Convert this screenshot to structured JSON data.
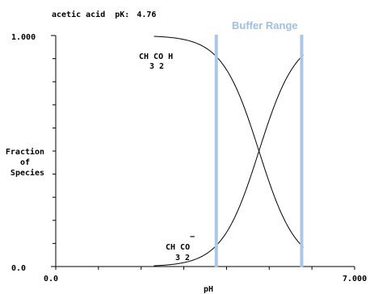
{
  "header": {
    "compound": "acetic acid",
    "pk_label": "pK:",
    "pk_value": "4.76"
  },
  "buffer_label": "Buffer Range",
  "y_axis": {
    "label_lines": [
      "Fraction",
      "of",
      "Species"
    ],
    "top_tick": "1.000",
    "bottom_tick": "0.0"
  },
  "x_axis": {
    "label": "pH",
    "min_tick": "0.0",
    "max_tick": "7.000"
  },
  "species": {
    "acid": {
      "l1": "CH CO H",
      "l2": "3  2"
    },
    "base": {
      "l1": "CH CO",
      "charge": "−",
      "l2": "3  2"
    }
  },
  "colors": {
    "buffer": "#a9c8e8",
    "buffer_text": "#9cc0e6",
    "curve": "#000000"
  },
  "chart_data": {
    "type": "line",
    "title": "acetic acid pK: 4.76",
    "xlabel": "pH",
    "ylabel": "Fraction of Species",
    "xlim": [
      0,
      7
    ],
    "ylim": [
      0,
      1
    ],
    "pKa": 4.76,
    "x_ticks_minor_count": 7,
    "y_ticks_minor_count": 10,
    "buffer_range": [
      3.76,
      5.76
    ],
    "series": [
      {
        "name": "CH3CO2H",
        "x_range": [
          2.3,
          5.8
        ]
      },
      {
        "name": "CH3CO2-",
        "x_range": [
          2.3,
          5.8
        ]
      }
    ]
  }
}
